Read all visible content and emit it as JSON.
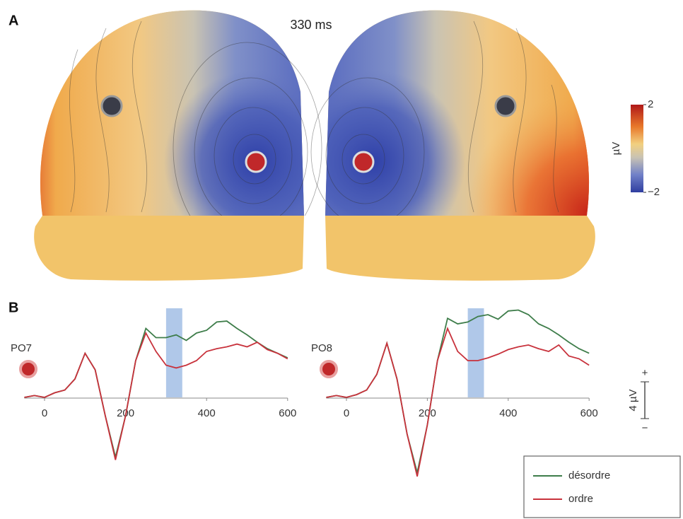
{
  "panel_a": {
    "label": "A",
    "time": "330 ms",
    "colorbar": {
      "label": "µV",
      "ticks": [
        2,
        {
          "value": -2,
          "label": "−2"
        }
      ]
    }
  },
  "panel_b": {
    "label": "B",
    "scale_bar": {
      "value": 4,
      "label": "4 µV",
      "plus": "+",
      "minus": "−"
    }
  },
  "chart_data": [
    {
      "type": "line",
      "electrode": "PO7",
      "xlim": [
        -50,
        600
      ],
      "ylim": [
        -9,
        10.5
      ],
      "xticks": [
        0,
        200,
        400,
        600
      ],
      "highlight": [
        300,
        340
      ],
      "x": [
        -50,
        -25,
        0,
        25,
        50,
        75,
        100,
        125,
        150,
        175,
        200,
        225,
        250,
        275,
        300,
        325,
        350,
        375,
        400,
        425,
        450,
        475,
        500,
        525,
        550,
        575,
        600
      ],
      "series": [
        {
          "name": "désordre",
          "color": "#3e7d4a",
          "values": [
            0,
            0.2,
            0,
            0.5,
            0.8,
            2,
            4.8,
            3,
            -2,
            -6.5,
            -2,
            4,
            7.5,
            6.5,
            6.5,
            6.8,
            6.2,
            7,
            7.3,
            8.2,
            8.3,
            7.5,
            6.8,
            6,
            5.3,
            4.8,
            4.3
          ]
        },
        {
          "name": "ordre",
          "color": "#c8323c",
          "values": [
            0,
            0.2,
            0,
            0.5,
            0.8,
            2,
            4.8,
            3,
            -2,
            -6.8,
            -2,
            4,
            7,
            5,
            3.5,
            3.2,
            3.5,
            4,
            5,
            5.3,
            5.5,
            5.8,
            5.5,
            6,
            5.2,
            4.8,
            4.2
          ]
        }
      ]
    },
    {
      "type": "line",
      "electrode": "PO8",
      "xlim": [
        -50,
        600
      ],
      "ylim": [
        -9,
        10.5
      ],
      "xticks": [
        0,
        200,
        400,
        600
      ],
      "highlight": [
        300,
        340
      ],
      "x": [
        -50,
        -25,
        0,
        25,
        50,
        75,
        100,
        125,
        150,
        175,
        200,
        225,
        250,
        275,
        300,
        325,
        350,
        375,
        400,
        425,
        450,
        475,
        500,
        525,
        550,
        575,
        600
      ],
      "series": [
        {
          "name": "désordre",
          "color": "#3e7d4a",
          "values": [
            0,
            0.2,
            0,
            0.3,
            0.8,
            2.5,
            5.9,
            2,
            -4,
            -8.2,
            -3,
            4,
            8.6,
            8,
            8.2,
            8.8,
            9,
            8.5,
            9.4,
            9.5,
            9,
            8,
            7.5,
            6.8,
            6,
            5.3,
            4.8
          ]
        },
        {
          "name": "ordre",
          "color": "#c8323c",
          "values": [
            0,
            0.2,
            0,
            0.3,
            0.8,
            2.5,
            5.9,
            2,
            -4,
            -8.6,
            -3,
            4,
            7.5,
            5,
            4,
            4,
            4.3,
            4.7,
            5.2,
            5.5,
            5.7,
            5.3,
            5,
            5.7,
            4.5,
            4.2,
            3.5
          ]
        }
      ]
    }
  ]
}
